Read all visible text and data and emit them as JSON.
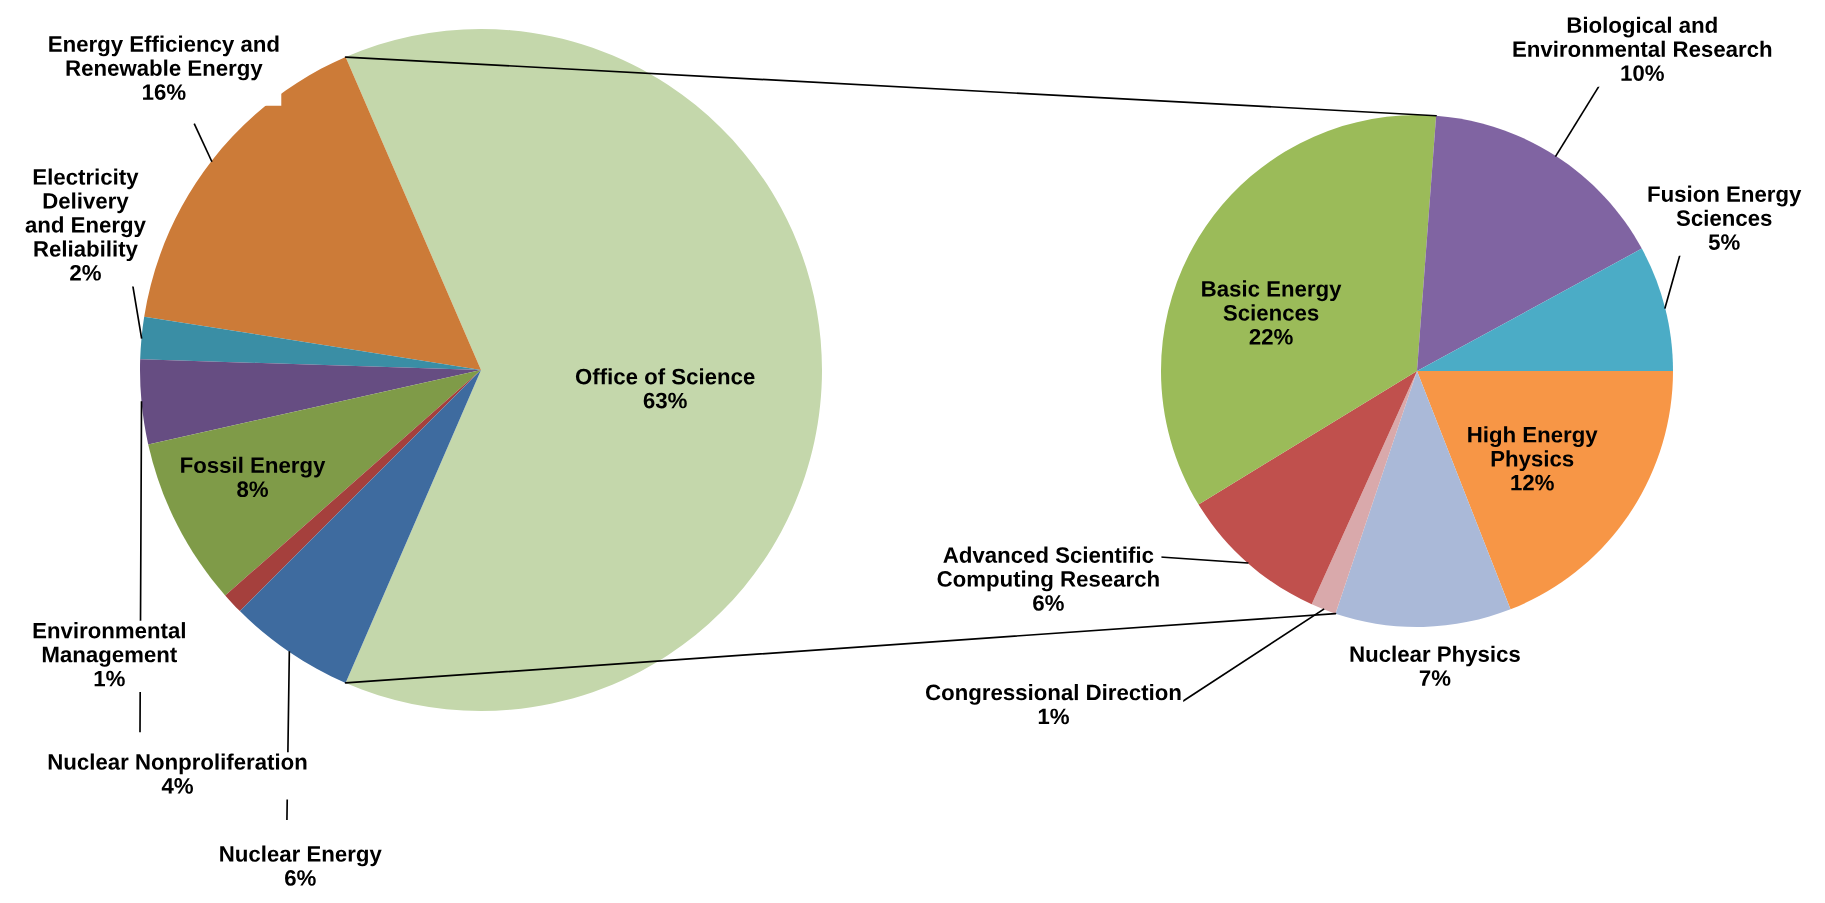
{
  "chart_data": [
    {
      "type": "pie",
      "categories": [
        "Office of Science",
        "Energy Efficiency and\nRenewable Energy",
        "Electricity\nDelivery\nand Energy\nReliability",
        "Nuclear Nonproliferation",
        "Fossil Energy",
        "Environmental\nManagement",
        "Nuclear Energy"
      ],
      "values": [
        63,
        16,
        2,
        4,
        8,
        1,
        6
      ],
      "value_labels": [
        "63%",
        "16%",
        "2%",
        "4%",
        "8%",
        "1%",
        "6%"
      ],
      "colors": [
        "#c4d7ab",
        "#cc7b38",
        "#3a8ea5",
        "#664d82",
        "#7f9b48",
        "#a5403d",
        "#3e6b9f"
      ]
    },
    {
      "type": "pie",
      "categories": [
        "High Energy\nPhysics",
        "Nuclear Physics",
        "Congressional Direction",
        "Advanced Scientific\nComputing Research",
        "Basic Energy\nSciences",
        "Biological and\nEnvironmental Research",
        "Fusion Energy\nSciences"
      ],
      "values": [
        12,
        7,
        1,
        6,
        22,
        10,
        5
      ],
      "value_labels": [
        "12%",
        "7%",
        "1%",
        "6%",
        "22%",
        "10%",
        "5%"
      ],
      "colors": [
        "#f79646",
        "#aab9d8",
        "#d9a9ab",
        "#c0504d",
        "#9bbb59",
        "#8064a2",
        "#4bacc6"
      ]
    }
  ]
}
